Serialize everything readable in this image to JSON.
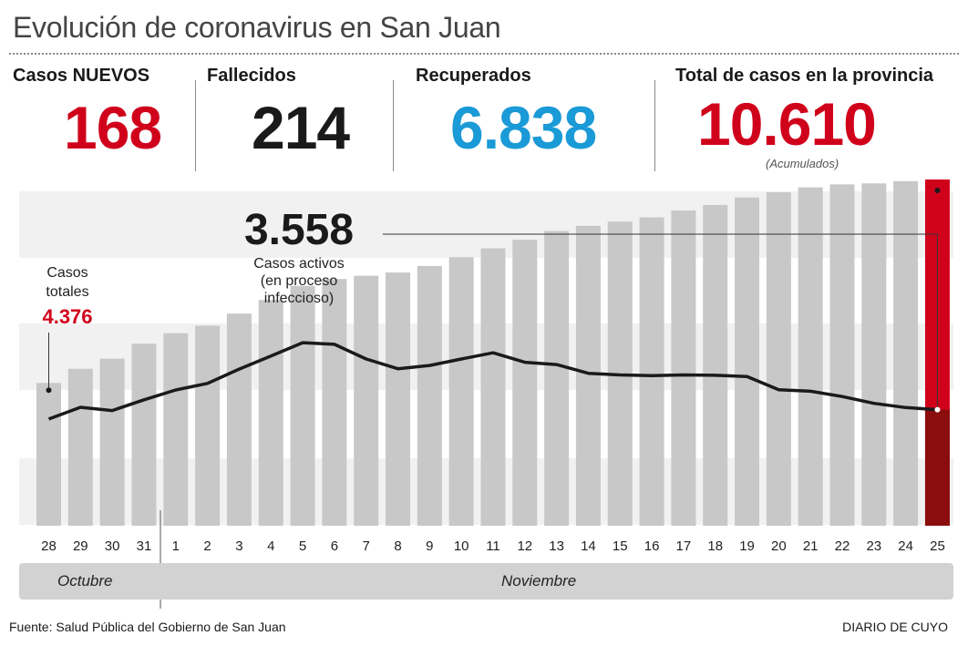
{
  "title": "Evolución de coronavirus en San Juan",
  "stats": {
    "nuevos": {
      "label": "Casos NUEVOS",
      "value": "168",
      "color": "#d0021b"
    },
    "fallecidos": {
      "label": "Fallecidos",
      "value": "214",
      "color": "#1a1a1a"
    },
    "recuperados": {
      "label": "Recuperados",
      "value": "6.838",
      "color": "#1a9ad6"
    },
    "total": {
      "label": "Total de casos en la provincia",
      "value": "10.610",
      "sub": "(Acumulados)",
      "color": "#d0021b"
    }
  },
  "annotations": {
    "start_label": "Casos\ntotales",
    "start_value": "4.376",
    "active_value": "3.558",
    "active_label": "Casos activos\n(en proceso\ninfeccioso)"
  },
  "months": [
    "Octubre",
    "Noviembre"
  ],
  "footer": {
    "source": "Fuente: Salud Pública del Gobierno de San Juan",
    "brand": "DIARIO DE CUYO"
  },
  "colors": {
    "bar": "#c8c8c8",
    "highlight_bar": "#d0021b",
    "highlight_active": "#8b0d0d",
    "line": "#1a1a1a",
    "band": "#f1f1f1"
  },
  "chart_data": {
    "type": "bar",
    "categories": [
      "28",
      "29",
      "30",
      "31",
      "1",
      "2",
      "3",
      "4",
      "5",
      "6",
      "7",
      "8",
      "9",
      "10",
      "11",
      "12",
      "13",
      "14",
      "15",
      "16",
      "17",
      "18",
      "19",
      "20",
      "21",
      "22",
      "23",
      "24",
      "25"
    ],
    "series": [
      {
        "values": [
          4376,
          4810,
          5120,
          5580,
          5900,
          6130,
          6500,
          6920,
          7350,
          7560,
          7660,
          7760,
          7960,
          8230,
          8500,
          8760,
          9030,
          9190,
          9320,
          9450,
          9660,
          9830,
          10060,
          10220,
          10370,
          10460,
          10490,
          10560,
          10610
        ]
      },
      {
        "values": [
          3270,
          3630,
          3530,
          3860,
          4160,
          4360,
          4800,
          5200,
          5610,
          5560,
          5110,
          4810,
          4910,
          5110,
          5300,
          5010,
          4940,
          4670,
          4620,
          4600,
          4620,
          4610,
          4570,
          4170,
          4120,
          3960,
          3750,
          3620,
          3558
        ]
      }
    ],
    "highlight_index": 28,
    "ylim": [
      0,
      10610
    ]
  }
}
